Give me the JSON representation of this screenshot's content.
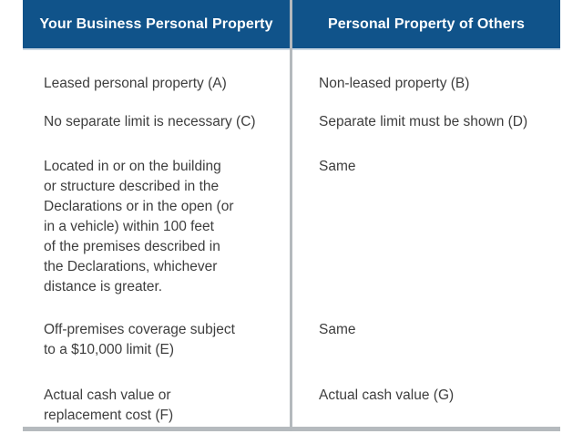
{
  "table": {
    "header": {
      "left": "Your Business Personal Property",
      "right": "Personal Property of Others"
    },
    "rows": [
      {
        "left": "Leased personal property (A)",
        "right": "Non-leased property (B)"
      },
      {
        "left": "No separate limit is necessary (C)",
        "right": "Separate limit must be shown (D)"
      },
      {
        "left": "Located in or on the building\nor structure described in the\nDeclarations or in the open (or\nin a vehicle) within 100 feet\nof the premises described in\nthe Declarations, whichever\ndistance is greater.",
        "right": "Same"
      },
      {
        "left": "Off-premises coverage subject\nto a $10,000 limit (E)",
        "right": "Same"
      },
      {
        "left": "Actual cash value or\nreplacement cost (F)",
        "right": "Actual cash value (G)"
      }
    ]
  },
  "colors": {
    "header_background": "#10538a",
    "header_text": "#ffffff",
    "header_underline": "#ccd9e4",
    "column_divider": "#b4b9bd",
    "bottom_bar": "#b5babe",
    "body_text": "#3e3e3e",
    "page_background": "#ffffff"
  }
}
